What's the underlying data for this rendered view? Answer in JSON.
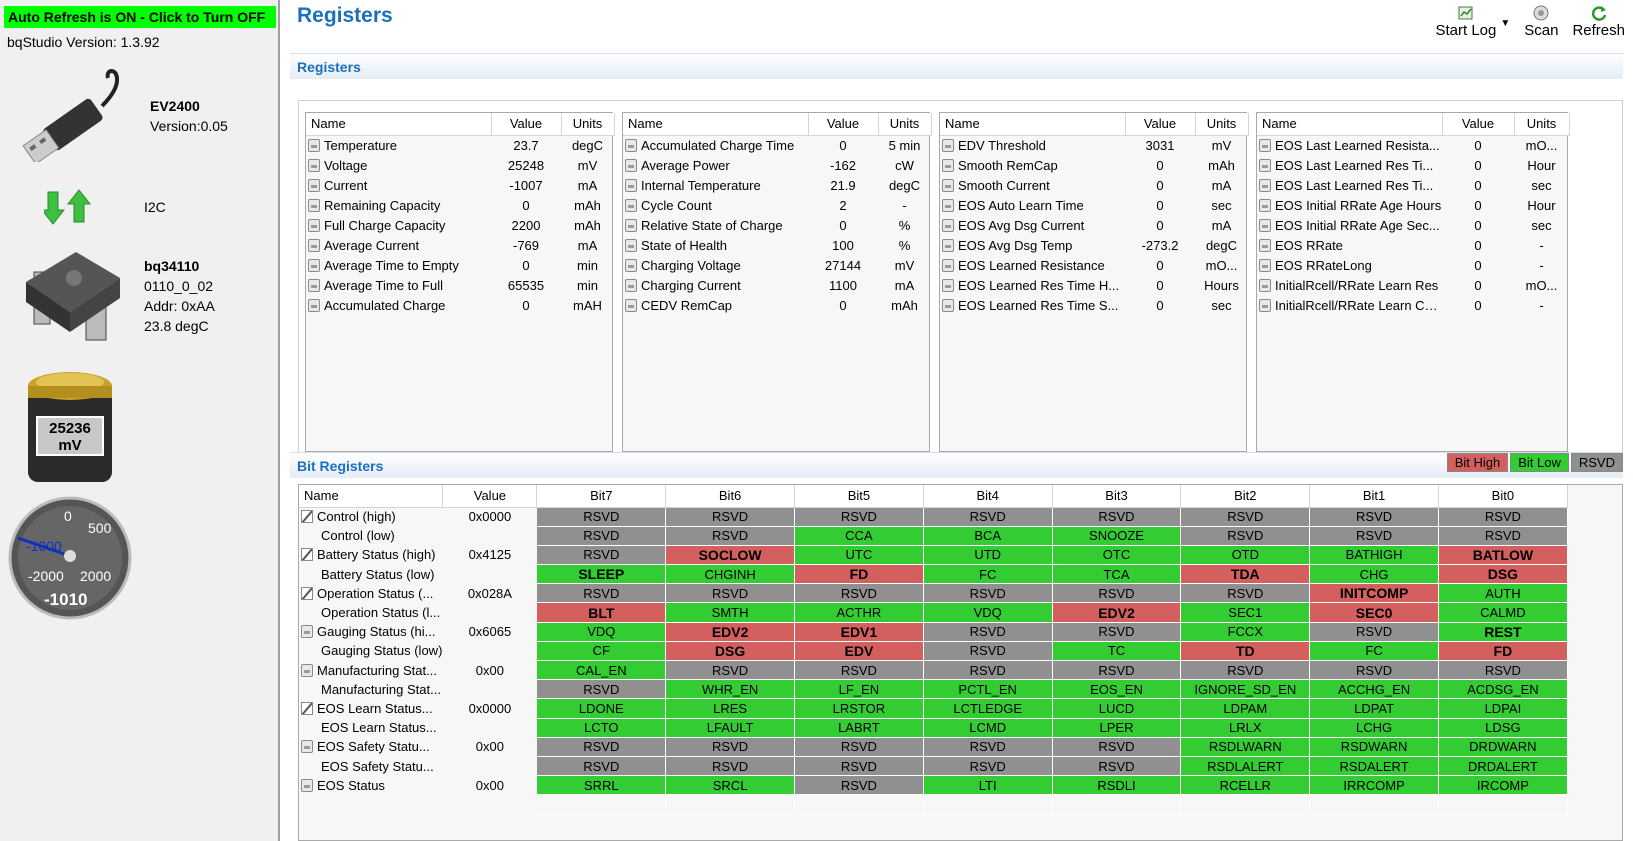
{
  "left": {
    "auto_refresh": "Auto Refresh is ON - Click to Turn OFF",
    "version_label": "bqStudio Version:  1.3.92",
    "board_name": "EV2400",
    "board_version": "Version:0.05",
    "interface": "I2C",
    "device_name": "bq34110",
    "device_fw": "0110_0_02",
    "device_addr": "Addr: 0xAA",
    "device_temp": "23.8 degC",
    "battery_value": "25236",
    "battery_unit": "mV",
    "gauge_value": "-1010",
    "gauge_ticks": [
      "0",
      "500",
      "-1000",
      "-2000",
      "2000"
    ]
  },
  "header": {
    "title": "Registers"
  },
  "toolbar": {
    "start_log": "Start Log",
    "scan": "Scan",
    "refresh": "Refresh"
  },
  "registers": {
    "section_title": "Registers",
    "columns": [
      "Name",
      "Value",
      "Units"
    ],
    "tables": [
      [
        [
          "Temperature",
          "23.7",
          "degC"
        ],
        [
          "Voltage",
          "25248",
          "mV"
        ],
        [
          "Current",
          "-1007",
          "mA"
        ],
        [
          "Remaining Capacity",
          "0",
          "mAh"
        ],
        [
          "Full Charge Capacity",
          "2200",
          "mAh"
        ],
        [
          "Average Current",
          "-769",
          "mA"
        ],
        [
          "Average Time to Empty",
          "0",
          "min"
        ],
        [
          "Average Time to Full",
          "65535",
          "min"
        ],
        [
          "Accumulated Charge",
          "0",
          "mAH"
        ]
      ],
      [
        [
          "Accumulated Charge Time",
          "0",
          "5 min"
        ],
        [
          "Average Power",
          "-162",
          "cW"
        ],
        [
          "Internal Temperature",
          "21.9",
          "degC"
        ],
        [
          "Cycle Count",
          "2",
          "-"
        ],
        [
          "Relative State of Charge",
          "0",
          "%"
        ],
        [
          "State of Health",
          "100",
          "%"
        ],
        [
          "Charging Voltage",
          "27144",
          "mV"
        ],
        [
          "Charging Current",
          "1100",
          "mA"
        ],
        [
          "CEDV RemCap",
          "0",
          "mAh"
        ]
      ],
      [
        [
          "EDV Threshold",
          "3031",
          "mV"
        ],
        [
          "Smooth RemCap",
          "0",
          "mAh"
        ],
        [
          "Smooth Current",
          "0",
          "mA"
        ],
        [
          "EOS Auto Learn Time",
          "0",
          "sec"
        ],
        [
          "EOS Avg Dsg Current",
          "0",
          "mA"
        ],
        [
          "EOS Avg Dsg Temp",
          "-273.2",
          "degC"
        ],
        [
          "EOS Learned Resistance",
          "0",
          "mO..."
        ],
        [
          "EOS Learned Res Time H...",
          "0",
          "Hours"
        ],
        [
          "EOS Learned Res Time S...",
          "0",
          "sec"
        ]
      ],
      [
        [
          "EOS Last Learned Resista...",
          "0",
          "mO..."
        ],
        [
          "EOS Last Learned Res Ti...",
          "0",
          "Hour"
        ],
        [
          "EOS Last Learned Res Ti...",
          "0",
          "sec"
        ],
        [
          "EOS Initial RRate Age Hours",
          "0",
          "Hour"
        ],
        [
          "EOS Initial RRate Age Sec...",
          "0",
          "sec"
        ],
        [
          "EOS RRate",
          "0",
          "-"
        ],
        [
          "EOS RRateLong",
          "0",
          "-"
        ],
        [
          "InitialRcell/RRate Learn Res",
          "0",
          "mO..."
        ],
        [
          "InitialRcell/RRate Learn Co...",
          "0",
          "-"
        ]
      ]
    ]
  },
  "bit_registers": {
    "section_title": "Bit Registers",
    "legend": {
      "high": "Bit High",
      "low": "Bit Low",
      "rsvd": "RSVD"
    },
    "colors": {
      "high": "#d45f5f",
      "low": "#33cc33",
      "rsvd": "#909090"
    },
    "columns": [
      "Name",
      "Value",
      "Bit7",
      "Bit6",
      "Bit5",
      "Bit4",
      "Bit3",
      "Bit2",
      "Bit1",
      "Bit0"
    ],
    "rows": [
      {
        "icon": "edit",
        "name": "Control (high)",
        "value": "0x0000",
        "bits": [
          [
            "RSVD",
            "R"
          ],
          [
            "RSVD",
            "R"
          ],
          [
            "RSVD",
            "R"
          ],
          [
            "RSVD",
            "R"
          ],
          [
            "RSVD",
            "R"
          ],
          [
            "RSVD",
            "R"
          ],
          [
            "RSVD",
            "R"
          ],
          [
            "RSVD",
            "R"
          ]
        ]
      },
      {
        "icon": "",
        "name": "Control (low)",
        "value": "",
        "bits": [
          [
            "RSVD",
            "R"
          ],
          [
            "RSVD",
            "R"
          ],
          [
            "CCA",
            "L"
          ],
          [
            "BCA",
            "L"
          ],
          [
            "SNOOZE",
            "L"
          ],
          [
            "RSVD",
            "R"
          ],
          [
            "RSVD",
            "R"
          ],
          [
            "RSVD",
            "R"
          ]
        ]
      },
      {
        "icon": "edit",
        "name": "Battery Status (high)",
        "value": "0x4125",
        "bits": [
          [
            "RSVD",
            "R"
          ],
          [
            "SOCLOW",
            "H"
          ],
          [
            "UTC",
            "L"
          ],
          [
            "UTD",
            "L"
          ],
          [
            "OTC",
            "L"
          ],
          [
            "OTD",
            "L"
          ],
          [
            "BATHIGH",
            "L"
          ],
          [
            "BATLOW",
            "H"
          ]
        ]
      },
      {
        "icon": "",
        "name": "Battery Status (low)",
        "value": "",
        "bits": [
          [
            "SLEEP",
            "Lb"
          ],
          [
            "CHGINH",
            "L"
          ],
          [
            "FD",
            "H"
          ],
          [
            "FC",
            "L"
          ],
          [
            "TCA",
            "L"
          ],
          [
            "TDA",
            "H"
          ],
          [
            "CHG",
            "L"
          ],
          [
            "DSG",
            "H"
          ]
        ]
      },
      {
        "icon": "edit",
        "name": "Operation Status (...",
        "value": "0x028A",
        "bits": [
          [
            "RSVD",
            "R"
          ],
          [
            "RSVD",
            "R"
          ],
          [
            "RSVD",
            "R"
          ],
          [
            "RSVD",
            "R"
          ],
          [
            "RSVD",
            "R"
          ],
          [
            "RSVD",
            "R"
          ],
          [
            "INITCOMP",
            "H"
          ],
          [
            "AUTH",
            "L"
          ]
        ]
      },
      {
        "icon": "",
        "name": "Operation Status (l...",
        "value": "",
        "bits": [
          [
            "BLT",
            "H"
          ],
          [
            "SMTH",
            "L"
          ],
          [
            "ACTHR",
            "L"
          ],
          [
            "VDQ",
            "L"
          ],
          [
            "EDV2",
            "H"
          ],
          [
            "SEC1",
            "L"
          ],
          [
            "SEC0",
            "H"
          ],
          [
            "CALMD",
            "L"
          ]
        ]
      },
      {
        "icon": "lock",
        "name": "Gauging Status (hi...",
        "value": "0x6065",
        "bits": [
          [
            "VDQ",
            "L"
          ],
          [
            "EDV2",
            "H"
          ],
          [
            "EDV1",
            "H"
          ],
          [
            "RSVD",
            "R"
          ],
          [
            "RSVD",
            "R"
          ],
          [
            "FCCX",
            "L"
          ],
          [
            "RSVD",
            "R"
          ],
          [
            "REST",
            "Lb"
          ]
        ]
      },
      {
        "icon": "",
        "name": "Gauging Status (low)",
        "value": "",
        "bits": [
          [
            "CF",
            "L"
          ],
          [
            "DSG",
            "H"
          ],
          [
            "EDV",
            "H"
          ],
          [
            "RSVD",
            "R"
          ],
          [
            "TC",
            "L"
          ],
          [
            "TD",
            "H"
          ],
          [
            "FC",
            "L"
          ],
          [
            "FD",
            "H"
          ]
        ]
      },
      {
        "icon": "lock",
        "name": "Manufacturing Stat...",
        "value": "0x00",
        "bits": [
          [
            "CAL_EN",
            "L"
          ],
          [
            "RSVD",
            "R"
          ],
          [
            "RSVD",
            "R"
          ],
          [
            "RSVD",
            "R"
          ],
          [
            "RSVD",
            "R"
          ],
          [
            "RSVD",
            "R"
          ],
          [
            "RSVD",
            "R"
          ],
          [
            "RSVD",
            "R"
          ]
        ]
      },
      {
        "icon": "",
        "name": "Manufacturing Stat...",
        "value": "",
        "bits": [
          [
            "RSVD",
            "R"
          ],
          [
            "WHR_EN",
            "L"
          ],
          [
            "LF_EN",
            "L"
          ],
          [
            "PCTL_EN",
            "L"
          ],
          [
            "EOS_EN",
            "L"
          ],
          [
            "IGNORE_SD_EN",
            "L"
          ],
          [
            "ACCHG_EN",
            "L"
          ],
          [
            "ACDSG_EN",
            "L"
          ]
        ]
      },
      {
        "icon": "edit",
        "name": "EOS Learn Status...",
        "value": "0x0000",
        "bits": [
          [
            "LDONE",
            "L"
          ],
          [
            "LRES",
            "L"
          ],
          [
            "LRSTOR",
            "L"
          ],
          [
            "LCTLEDGE",
            "L"
          ],
          [
            "LUCD",
            "L"
          ],
          [
            "LDPAM",
            "L"
          ],
          [
            "LDPAT",
            "L"
          ],
          [
            "LDPAI",
            "L"
          ]
        ]
      },
      {
        "icon": "",
        "name": "EOS Learn Status...",
        "value": "",
        "bits": [
          [
            "LCTO",
            "L"
          ],
          [
            "LFAULT",
            "L"
          ],
          [
            "LABRT",
            "L"
          ],
          [
            "LCMD",
            "L"
          ],
          [
            "LPER",
            "L"
          ],
          [
            "LRLX",
            "L"
          ],
          [
            "LCHG",
            "L"
          ],
          [
            "LDSG",
            "L"
          ]
        ]
      },
      {
        "icon": "lock",
        "name": "EOS Safety Statu...",
        "value": "0x00",
        "bits": [
          [
            "RSVD",
            "R"
          ],
          [
            "RSVD",
            "R"
          ],
          [
            "RSVD",
            "R"
          ],
          [
            "RSVD",
            "R"
          ],
          [
            "RSVD",
            "R"
          ],
          [
            "RSDLWARN",
            "L"
          ],
          [
            "RSDWARN",
            "L"
          ],
          [
            "DRDWARN",
            "L"
          ]
        ]
      },
      {
        "icon": "",
        "name": "EOS Safety Statu...",
        "value": "",
        "bits": [
          [
            "RSVD",
            "R"
          ],
          [
            "RSVD",
            "R"
          ],
          [
            "RSVD",
            "R"
          ],
          [
            "RSVD",
            "R"
          ],
          [
            "RSVD",
            "R"
          ],
          [
            "RSDLALERT",
            "L"
          ],
          [
            "RSDALERT",
            "L"
          ],
          [
            "DRDALERT",
            "L"
          ]
        ]
      },
      {
        "icon": "lock",
        "name": "EOS Status",
        "value": "0x00",
        "bits": [
          [
            "SRRL",
            "L"
          ],
          [
            "SRCL",
            "L"
          ],
          [
            "RSVD",
            "R"
          ],
          [
            "LTI",
            "L"
          ],
          [
            "RSDLI",
            "L"
          ],
          [
            "RCELLR",
            "L"
          ],
          [
            "IRRCOMP",
            "L"
          ],
          [
            "IRCOMP",
            "L"
          ]
        ]
      }
    ]
  }
}
